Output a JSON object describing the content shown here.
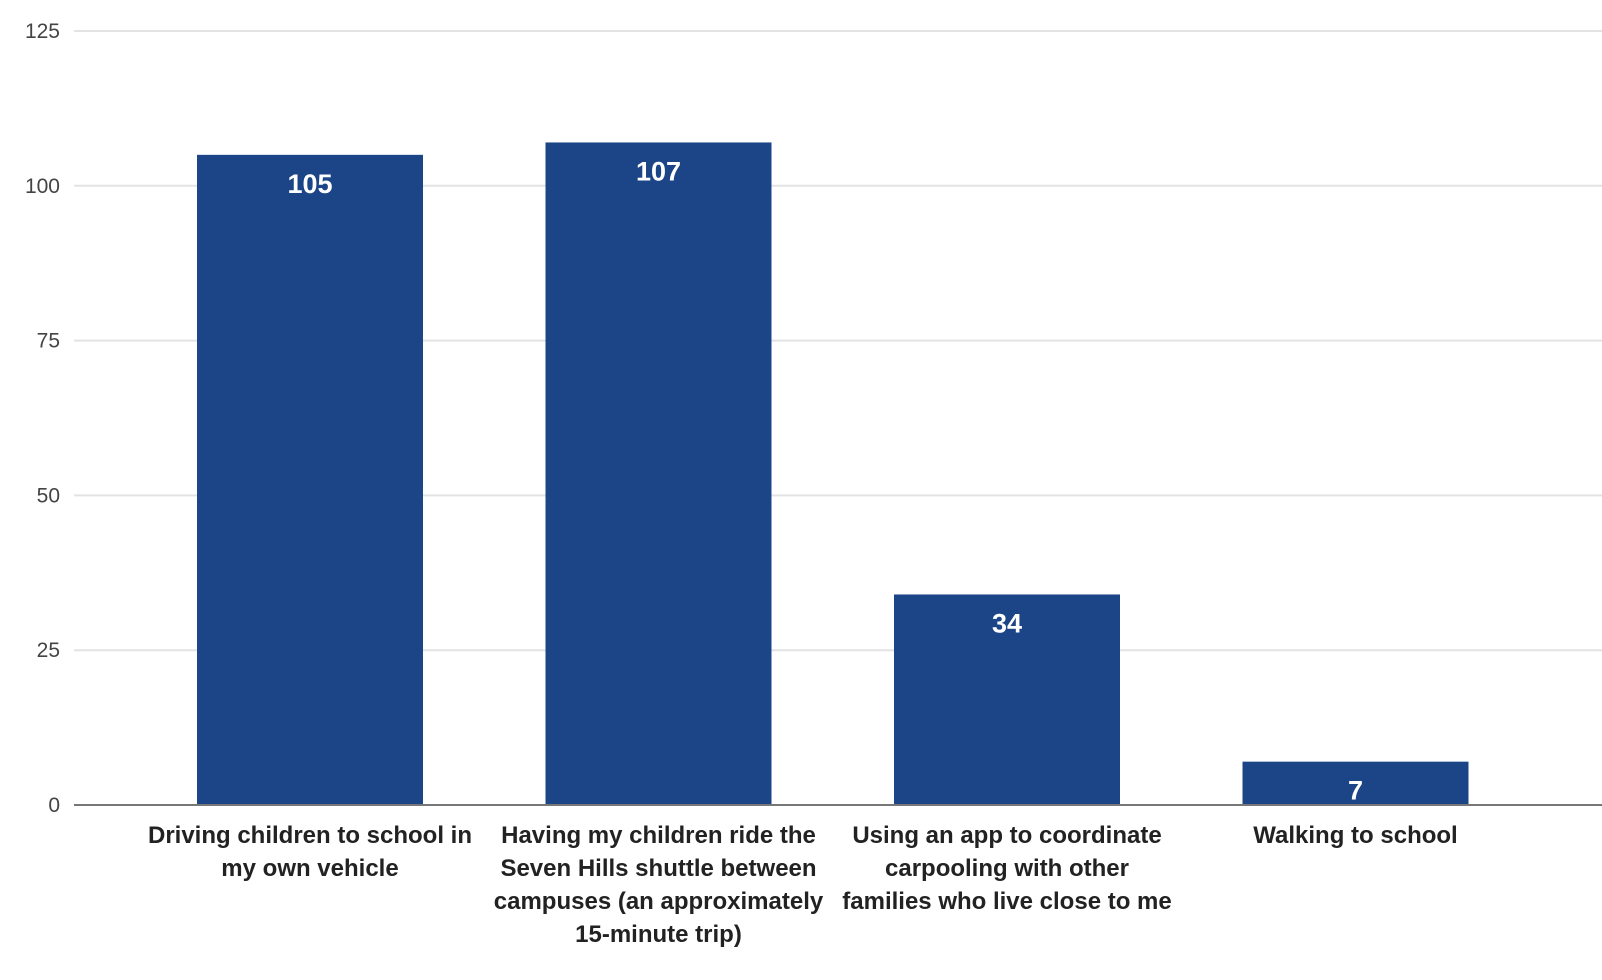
{
  "chart_data": {
    "type": "bar",
    "title": "",
    "xlabel": "",
    "ylabel": "",
    "categories": [
      [
        "Driving children to school in",
        "my own vehicle"
      ],
      [
        "Having my children ride the",
        "Seven Hills shuttle between",
        "campuses (an approximately",
        "15-minute trip)"
      ],
      [
        "Using an app to coordinate",
        "carpooling with other",
        "families who live close to me"
      ],
      [
        "Walking to school"
      ]
    ],
    "values": [
      105,
      107,
      34,
      7
    ],
    "data_labels": [
      "105",
      "107",
      "34",
      "7"
    ],
    "ylim": [
      0,
      125
    ],
    "yticks": [
      0,
      25,
      50,
      75,
      100,
      125
    ],
    "ytick_labels": [
      "0",
      "25",
      "50",
      "75",
      "100",
      "125"
    ],
    "grid": true,
    "legend": "none",
    "colors": {
      "bar": "#1c4587",
      "grid": "#e3e3e3",
      "baseline": "#777777"
    }
  }
}
